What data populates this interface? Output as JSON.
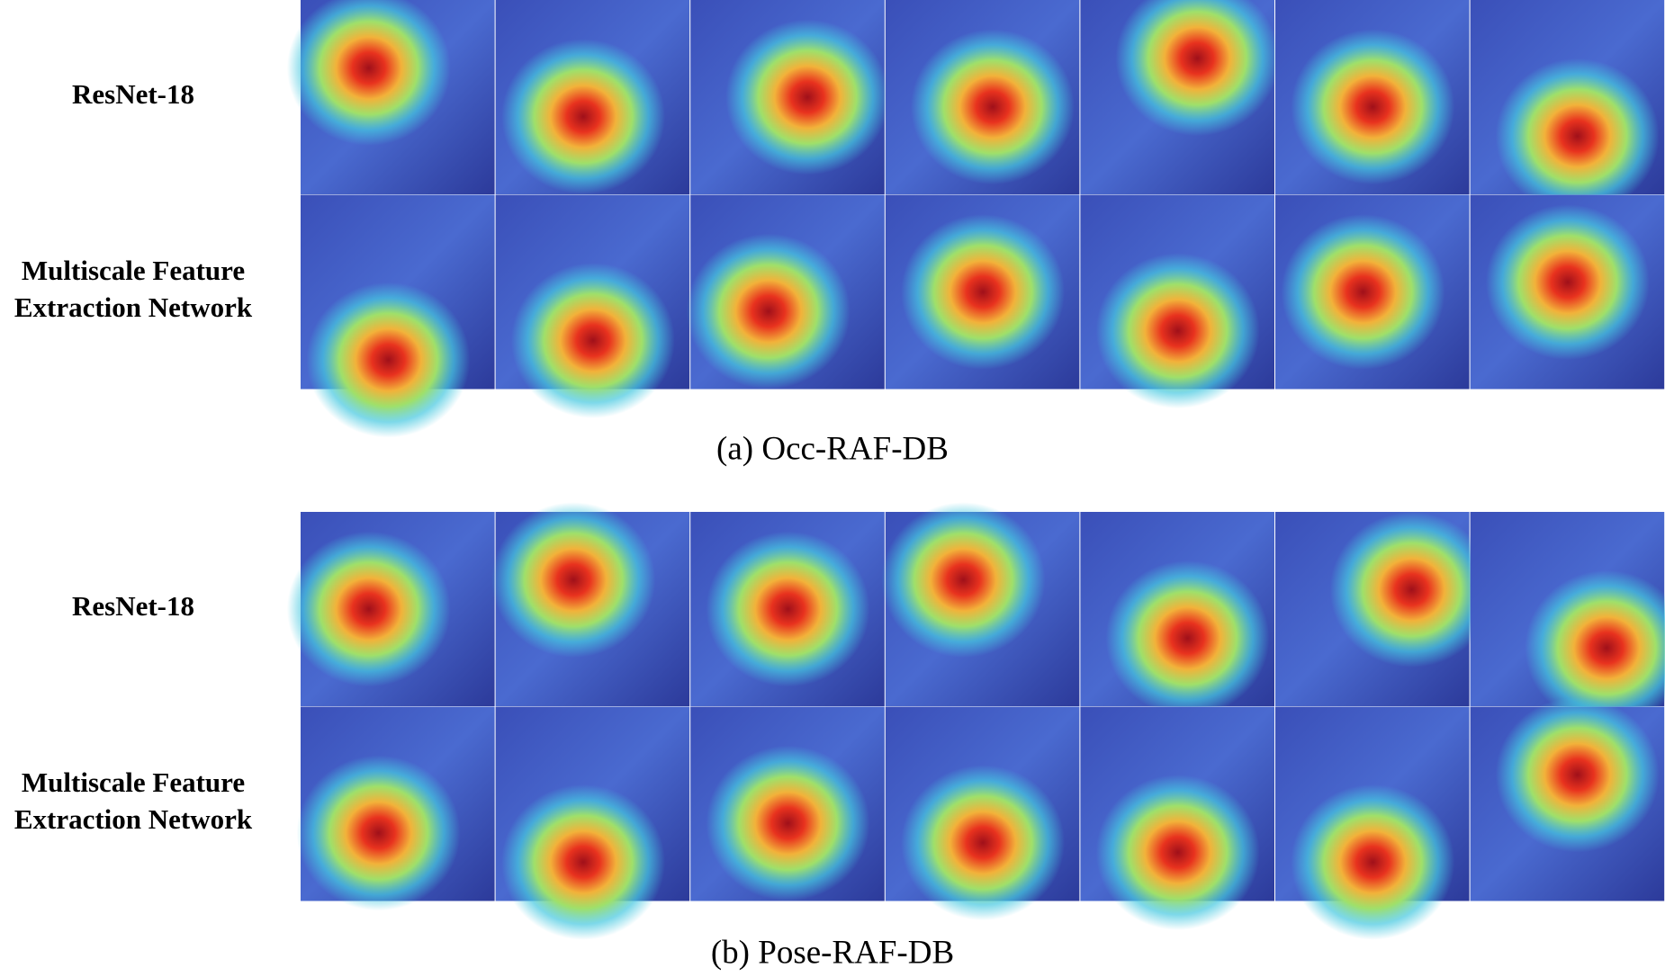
{
  "panels": [
    {
      "rows": [
        {
          "label": [
            "ResNet-18"
          ]
        },
        {
          "label": [
            "Multiscale Feature",
            "Extraction Network"
          ]
        }
      ],
      "caption": "(a) Occ-RAF-DB"
    },
    {
      "rows": [
        {
          "label": [
            "ResNet-18"
          ]
        },
        {
          "label": [
            "Multiscale Feature",
            "Extraction Network"
          ]
        }
      ],
      "caption": "(b) Pose-RAF-DB"
    }
  ]
}
